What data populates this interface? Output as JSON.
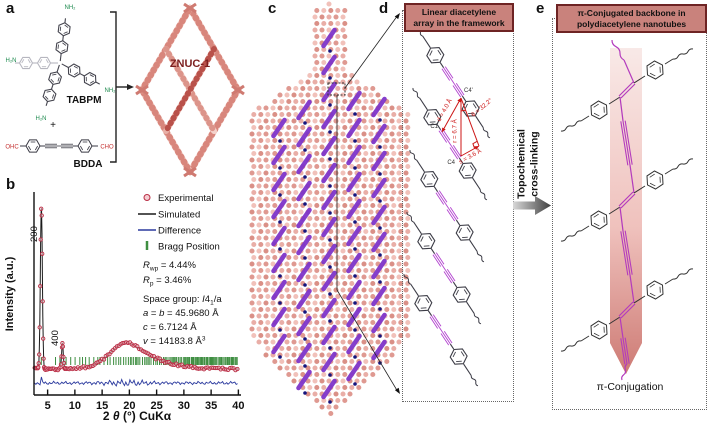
{
  "panels": {
    "a": "a",
    "b": "b",
    "c": "c",
    "d": "d",
    "e": "e"
  },
  "panel_a": {
    "tabpm": "TABPM",
    "plus": "+",
    "bdda": "BDDA",
    "product": "ZNUC-1",
    "amine_top": "NH₂",
    "amine_left": "H₂N",
    "amine_bottom": "H₂N",
    "amine_right": "NH₂",
    "aldehyde_left": "OHC",
    "aldehyde_right": "CHO"
  },
  "chart_data": {
    "type": "line",
    "xlabel": "2 θ (°) CuKα",
    "xlabel_parts": {
      "p1": "2 ",
      "p2": "θ",
      "p3": " (°) CuKα"
    },
    "ylabel": "Intensity (a.u.)",
    "xlim": [
      2.5,
      40
    ],
    "xticks": [
      5,
      10,
      15,
      20,
      25,
      30,
      35,
      40
    ],
    "series": [
      {
        "name": "Experimental",
        "style": "open_circles",
        "color": "#c23a4e"
      },
      {
        "name": "Simulated",
        "style": "line",
        "color": "#1a1a1a"
      },
      {
        "name": "Difference",
        "style": "line",
        "color": "#2b3a9e"
      },
      {
        "name": "Bragg Position",
        "style": "tick_marks",
        "color": "#3e8e41"
      }
    ],
    "peaks": [
      {
        "two_theta": 3.85,
        "rel_intensity": 100,
        "sigma": 0.18,
        "hkl": "200"
      },
      {
        "two_theta": 7.72,
        "rel_intensity": 16,
        "sigma": 0.15,
        "hkl": "400"
      }
    ],
    "amorphous_humps": [
      {
        "center": 19.0,
        "sigma": 2.6,
        "rel_intensity": 10
      },
      {
        "center": 22.0,
        "sigma": 4.8,
        "rel_intensity": 7
      }
    ],
    "bragg_ticks": {
      "start": 3.84,
      "end": 40
    },
    "stats": {
      "rwp_sym": "R",
      "rwp_sub": "wp",
      "rwp_val": " = 4.44%",
      "rp_sym": "R",
      "rp_sub": "p",
      "rp_val": " = 3.46%"
    },
    "refinement": {
      "sg_prefix": "Space group: ",
      "sg_it": "I",
      "sg_num": "4",
      "sg_sub": "1",
      "sg_suf": "/a",
      "ab_a": "a",
      "ab_eq": " = ",
      "ab_b": "b",
      "ab_val": " = 45.9680 Å",
      "c_sym": "c",
      "c_val": " = 6.7124 Å",
      "v_sym": "v",
      "v_val": " = 14183.8 Å",
      "v_sup": "3"
    }
  },
  "panel_d": {
    "header_line1": "Linear diacetylene",
    "header_line2": "array in the framework",
    "atom_c4p": "C4'",
    "atom_c1": "C1",
    "atom_c4": "C4",
    "m_d": "d = 4.0 Å",
    "m_r": "r = 6.7 Å",
    "m_theta": "θ = 32.2°",
    "m_s": "s = 3.6 Å"
  },
  "process": {
    "line1": "Topochemical",
    "line2": "cross-linking"
  },
  "panel_e": {
    "header_line1": "π-Conjugated backbone in",
    "header_line2": "polydiacetylene nanotubes",
    "footer": "π-Conjugation"
  },
  "colors": {
    "framework_salmon": "#dd8f86",
    "diacetylene_purple": "#7e35c9",
    "backbone_magenta": "#b33bbd",
    "annotation_red": "#cc1515",
    "header_bg": "#c9827c",
    "header_border": "#6e2424"
  }
}
